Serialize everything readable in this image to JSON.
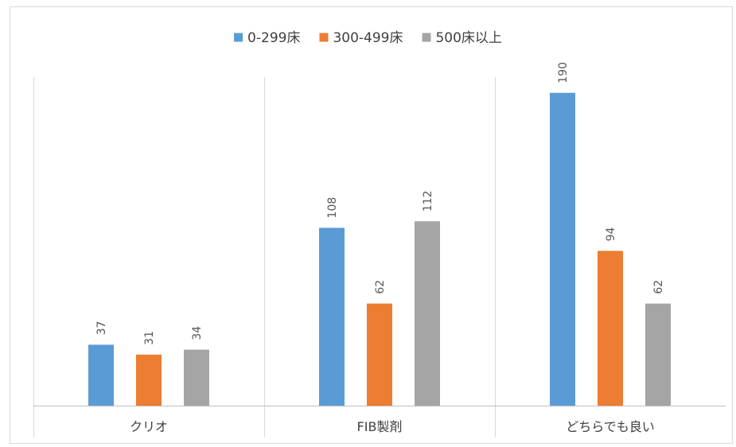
{
  "chart_data": {
    "type": "bar",
    "categories": [
      "クリオ",
      "FIB製剤",
      "どちらでも良い"
    ],
    "series": [
      {
        "name": "0-299床",
        "color": "#5b9bd5",
        "values": [
          37,
          108,
          190
        ]
      },
      {
        "name": "300-499床",
        "color": "#ed7d31",
        "values": [
          31,
          62,
          94
        ]
      },
      {
        "name": "500床以上",
        "color": "#a5a5a5",
        "values": [
          34,
          112,
          62
        ]
      }
    ],
    "title": "",
    "xlabel": "",
    "ylabel": "",
    "ylim": [
      0,
      200
    ],
    "grid": false,
    "legend_position": "top",
    "data_labels": true,
    "data_label_rotation": "vertical"
  }
}
